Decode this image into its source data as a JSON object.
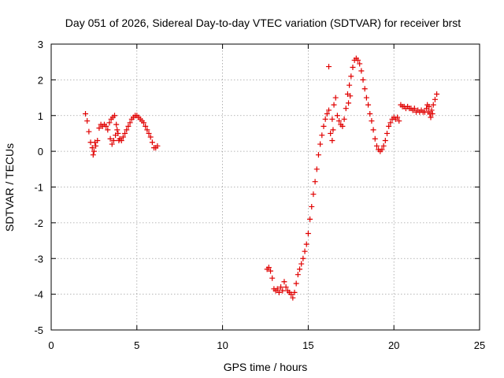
{
  "chart_data": {
    "type": "scatter",
    "title": "Day 051 of 2026, Sidereal Day-to-day VTEC variation (SDTVAR) for receiver brst",
    "xlabel": "GPS time / hours",
    "ylabel": "SDTVAR / TECUs",
    "xlim": [
      0,
      25
    ],
    "ylim": [
      -5,
      3
    ],
    "xticks": [
      0,
      5,
      10,
      15,
      20,
      25
    ],
    "yticks": [
      -5,
      -4,
      -3,
      -2,
      -1,
      0,
      1,
      2,
      3
    ],
    "grid": true,
    "marker": "plus",
    "color": "#e00000",
    "series": [
      {
        "x": [
          2.0,
          2.1,
          2.2,
          2.3,
          2.4,
          2.5,
          2.6,
          2.7,
          2.8,
          2.9,
          3.0,
          3.1,
          3.2,
          3.3,
          3.4,
          3.5,
          3.6,
          3.7,
          3.8,
          3.9,
          4.0,
          4.1,
          4.2,
          4.3,
          4.4,
          4.5,
          4.6,
          4.7,
          4.8,
          4.9,
          5.0,
          5.1,
          5.2,
          5.3,
          5.4,
          5.5,
          5.6,
          5.7,
          5.8,
          5.9,
          6.0,
          6.1,
          6.2
        ],
        "y": [
          1.05,
          0.85,
          0.55,
          0.25,
          0.1,
          0.0,
          0.15,
          0.3,
          0.65,
          0.75,
          0.7,
          0.75,
          0.7,
          0.6,
          0.8,
          0.9,
          0.95,
          1.0,
          0.75,
          0.5,
          0.35,
          0.3,
          0.4,
          0.5,
          0.6,
          0.7,
          0.8,
          0.9,
          0.95,
          1.0,
          1.0,
          0.95,
          0.9,
          0.85,
          0.8,
          0.7,
          0.6,
          0.5,
          0.4,
          0.25,
          0.1,
          0.1,
          0.15
        ]
      },
      {
        "x": [
          2.45,
          2.55,
          3.45,
          3.55,
          3.65,
          3.75,
          3.85,
          3.95
        ],
        "y": [
          -0.1,
          0.25,
          0.35,
          0.2,
          0.3,
          0.45,
          0.6,
          0.3
        ]
      },
      {
        "x": [
          12.6,
          12.7,
          12.8,
          12.9,
          13.0,
          13.1,
          13.2,
          13.3,
          13.4,
          13.5,
          13.6,
          13.7,
          13.8,
          13.9,
          14.0,
          14.1,
          14.2,
          14.3,
          14.4,
          14.5,
          14.6,
          14.7,
          14.8,
          14.9,
          15.0,
          15.1,
          15.2,
          15.3,
          15.4,
          15.5,
          15.6,
          15.7,
          15.8,
          15.9,
          16.0,
          16.1,
          16.2
        ],
        "y": [
          -3.3,
          -3.25,
          -3.35,
          -3.55,
          -3.85,
          -3.9,
          -3.85,
          -3.95,
          -3.8,
          -3.9,
          -3.65,
          -3.8,
          -3.9,
          -3.95,
          -4.0,
          -4.1,
          -3.95,
          -3.7,
          -3.45,
          -3.3,
          -3.15,
          -3.0,
          -2.8,
          -2.6,
          -2.3,
          -1.9,
          -1.55,
          -1.2,
          -0.85,
          -0.5,
          -0.1,
          0.2,
          0.45,
          0.7,
          0.9,
          1.05,
          1.15
        ]
      },
      {
        "x": [
          16.3,
          16.4,
          16.5,
          16.6,
          16.7,
          16.8,
          16.9,
          17.0,
          17.1,
          17.2,
          17.3,
          17.4,
          17.5,
          17.6,
          17.7,
          17.8,
          17.9,
          18.0,
          18.1,
          18.2,
          18.3,
          18.4,
          18.5,
          18.6,
          18.7,
          18.8,
          18.9,
          19.0,
          19.1,
          19.2,
          19.3,
          19.4,
          19.5,
          19.6,
          19.7,
          19.8,
          19.9,
          20.0,
          20.1,
          20.2,
          20.3
        ],
        "y": [
          0.5,
          0.9,
          1.3,
          1.5,
          1.0,
          0.85,
          0.75,
          0.7,
          0.9,
          1.2,
          1.6,
          1.85,
          2.1,
          2.35,
          2.55,
          2.6,
          2.55,
          2.45,
          2.25,
          2.0,
          1.75,
          1.5,
          1.3,
          1.05,
          0.85,
          0.6,
          0.35,
          0.15,
          0.05,
          0.0,
          0.05,
          0.15,
          0.3,
          0.5,
          0.7,
          0.8,
          0.9,
          0.95,
          0.9,
          0.95,
          0.85
        ]
      },
      {
        "x": [
          16.2,
          16.4,
          16.45,
          17.35,
          17.45
        ],
        "y": [
          2.37,
          0.3,
          0.6,
          1.35,
          1.55
        ]
      },
      {
        "x": [
          20.4,
          20.5,
          20.6,
          20.7,
          20.8,
          20.9,
          21.0,
          21.1,
          21.2,
          21.3,
          21.4,
          21.5,
          21.6,
          21.7,
          21.8,
          21.9,
          22.0,
          22.1,
          22.2,
          22.3,
          22.4,
          22.5
        ],
        "y": [
          1.3,
          1.25,
          1.25,
          1.2,
          1.25,
          1.2,
          1.2,
          1.15,
          1.2,
          1.1,
          1.15,
          1.1,
          1.15,
          1.1,
          1.1,
          1.2,
          1.1,
          1.05,
          1.15,
          1.3,
          1.45,
          1.6
        ]
      },
      {
        "x": [
          21.95,
          22.05,
          22.15,
          22.25
        ],
        "y": [
          1.3,
          1.25,
          0.95,
          1.05
        ]
      }
    ]
  }
}
